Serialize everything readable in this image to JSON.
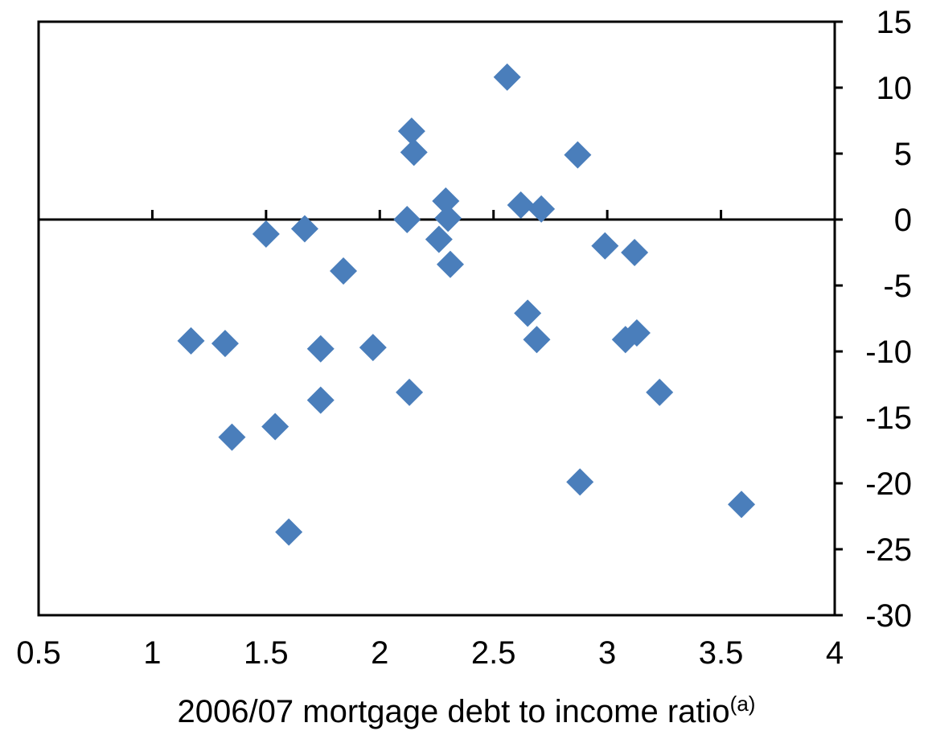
{
  "chart_data": {
    "type": "scatter",
    "xlabel": "2006/07 mortgage debt to income ratio",
    "xlabel_superscript": "(a)",
    "ylabel": "",
    "xlim": [
      0.5,
      4
    ],
    "ylim": [
      -30,
      15
    ],
    "x_ticks": [
      "0.5",
      "1",
      "1.5",
      "2",
      "2.5",
      "3",
      "3.5",
      "4"
    ],
    "y_ticks": [
      "15",
      "10",
      "5",
      "0",
      "-5",
      "-10",
      "-15",
      "-20",
      "-25",
      "-30"
    ],
    "y_axis_side": "right",
    "x_axis_crosses_at": 0,
    "grid": false,
    "legend": "none",
    "marker": "diamond",
    "marker_color": "#4a7ebb",
    "points": [
      {
        "x": 1.17,
        "y": -9.2
      },
      {
        "x": 1.32,
        "y": -9.4
      },
      {
        "x": 1.35,
        "y": -16.5
      },
      {
        "x": 1.5,
        "y": -1.1
      },
      {
        "x": 1.54,
        "y": -15.7
      },
      {
        "x": 1.6,
        "y": -23.7
      },
      {
        "x": 1.67,
        "y": -0.7
      },
      {
        "x": 1.74,
        "y": -9.8
      },
      {
        "x": 1.74,
        "y": -13.7
      },
      {
        "x": 1.84,
        "y": -3.9
      },
      {
        "x": 1.97,
        "y": -9.7
      },
      {
        "x": 2.12,
        "y": 0.0
      },
      {
        "x": 2.13,
        "y": -13.1
      },
      {
        "x": 2.14,
        "y": 6.7
      },
      {
        "x": 2.15,
        "y": 5.1
      },
      {
        "x": 2.26,
        "y": -1.5
      },
      {
        "x": 2.29,
        "y": 1.4
      },
      {
        "x": 2.3,
        "y": 0.1
      },
      {
        "x": 2.31,
        "y": -3.4
      },
      {
        "x": 2.56,
        "y": 10.8
      },
      {
        "x": 2.62,
        "y": 1.1
      },
      {
        "x": 2.65,
        "y": -7.1
      },
      {
        "x": 2.69,
        "y": -9.1
      },
      {
        "x": 2.71,
        "y": 0.8
      },
      {
        "x": 2.87,
        "y": 4.9
      },
      {
        "x": 2.88,
        "y": -19.9
      },
      {
        "x": 2.99,
        "y": -2.0
      },
      {
        "x": 3.08,
        "y": -9.1
      },
      {
        "x": 3.12,
        "y": -2.5
      },
      {
        "x": 3.13,
        "y": -8.6
      },
      {
        "x": 3.23,
        "y": -13.1
      },
      {
        "x": 3.59,
        "y": -21.6
      }
    ]
  }
}
